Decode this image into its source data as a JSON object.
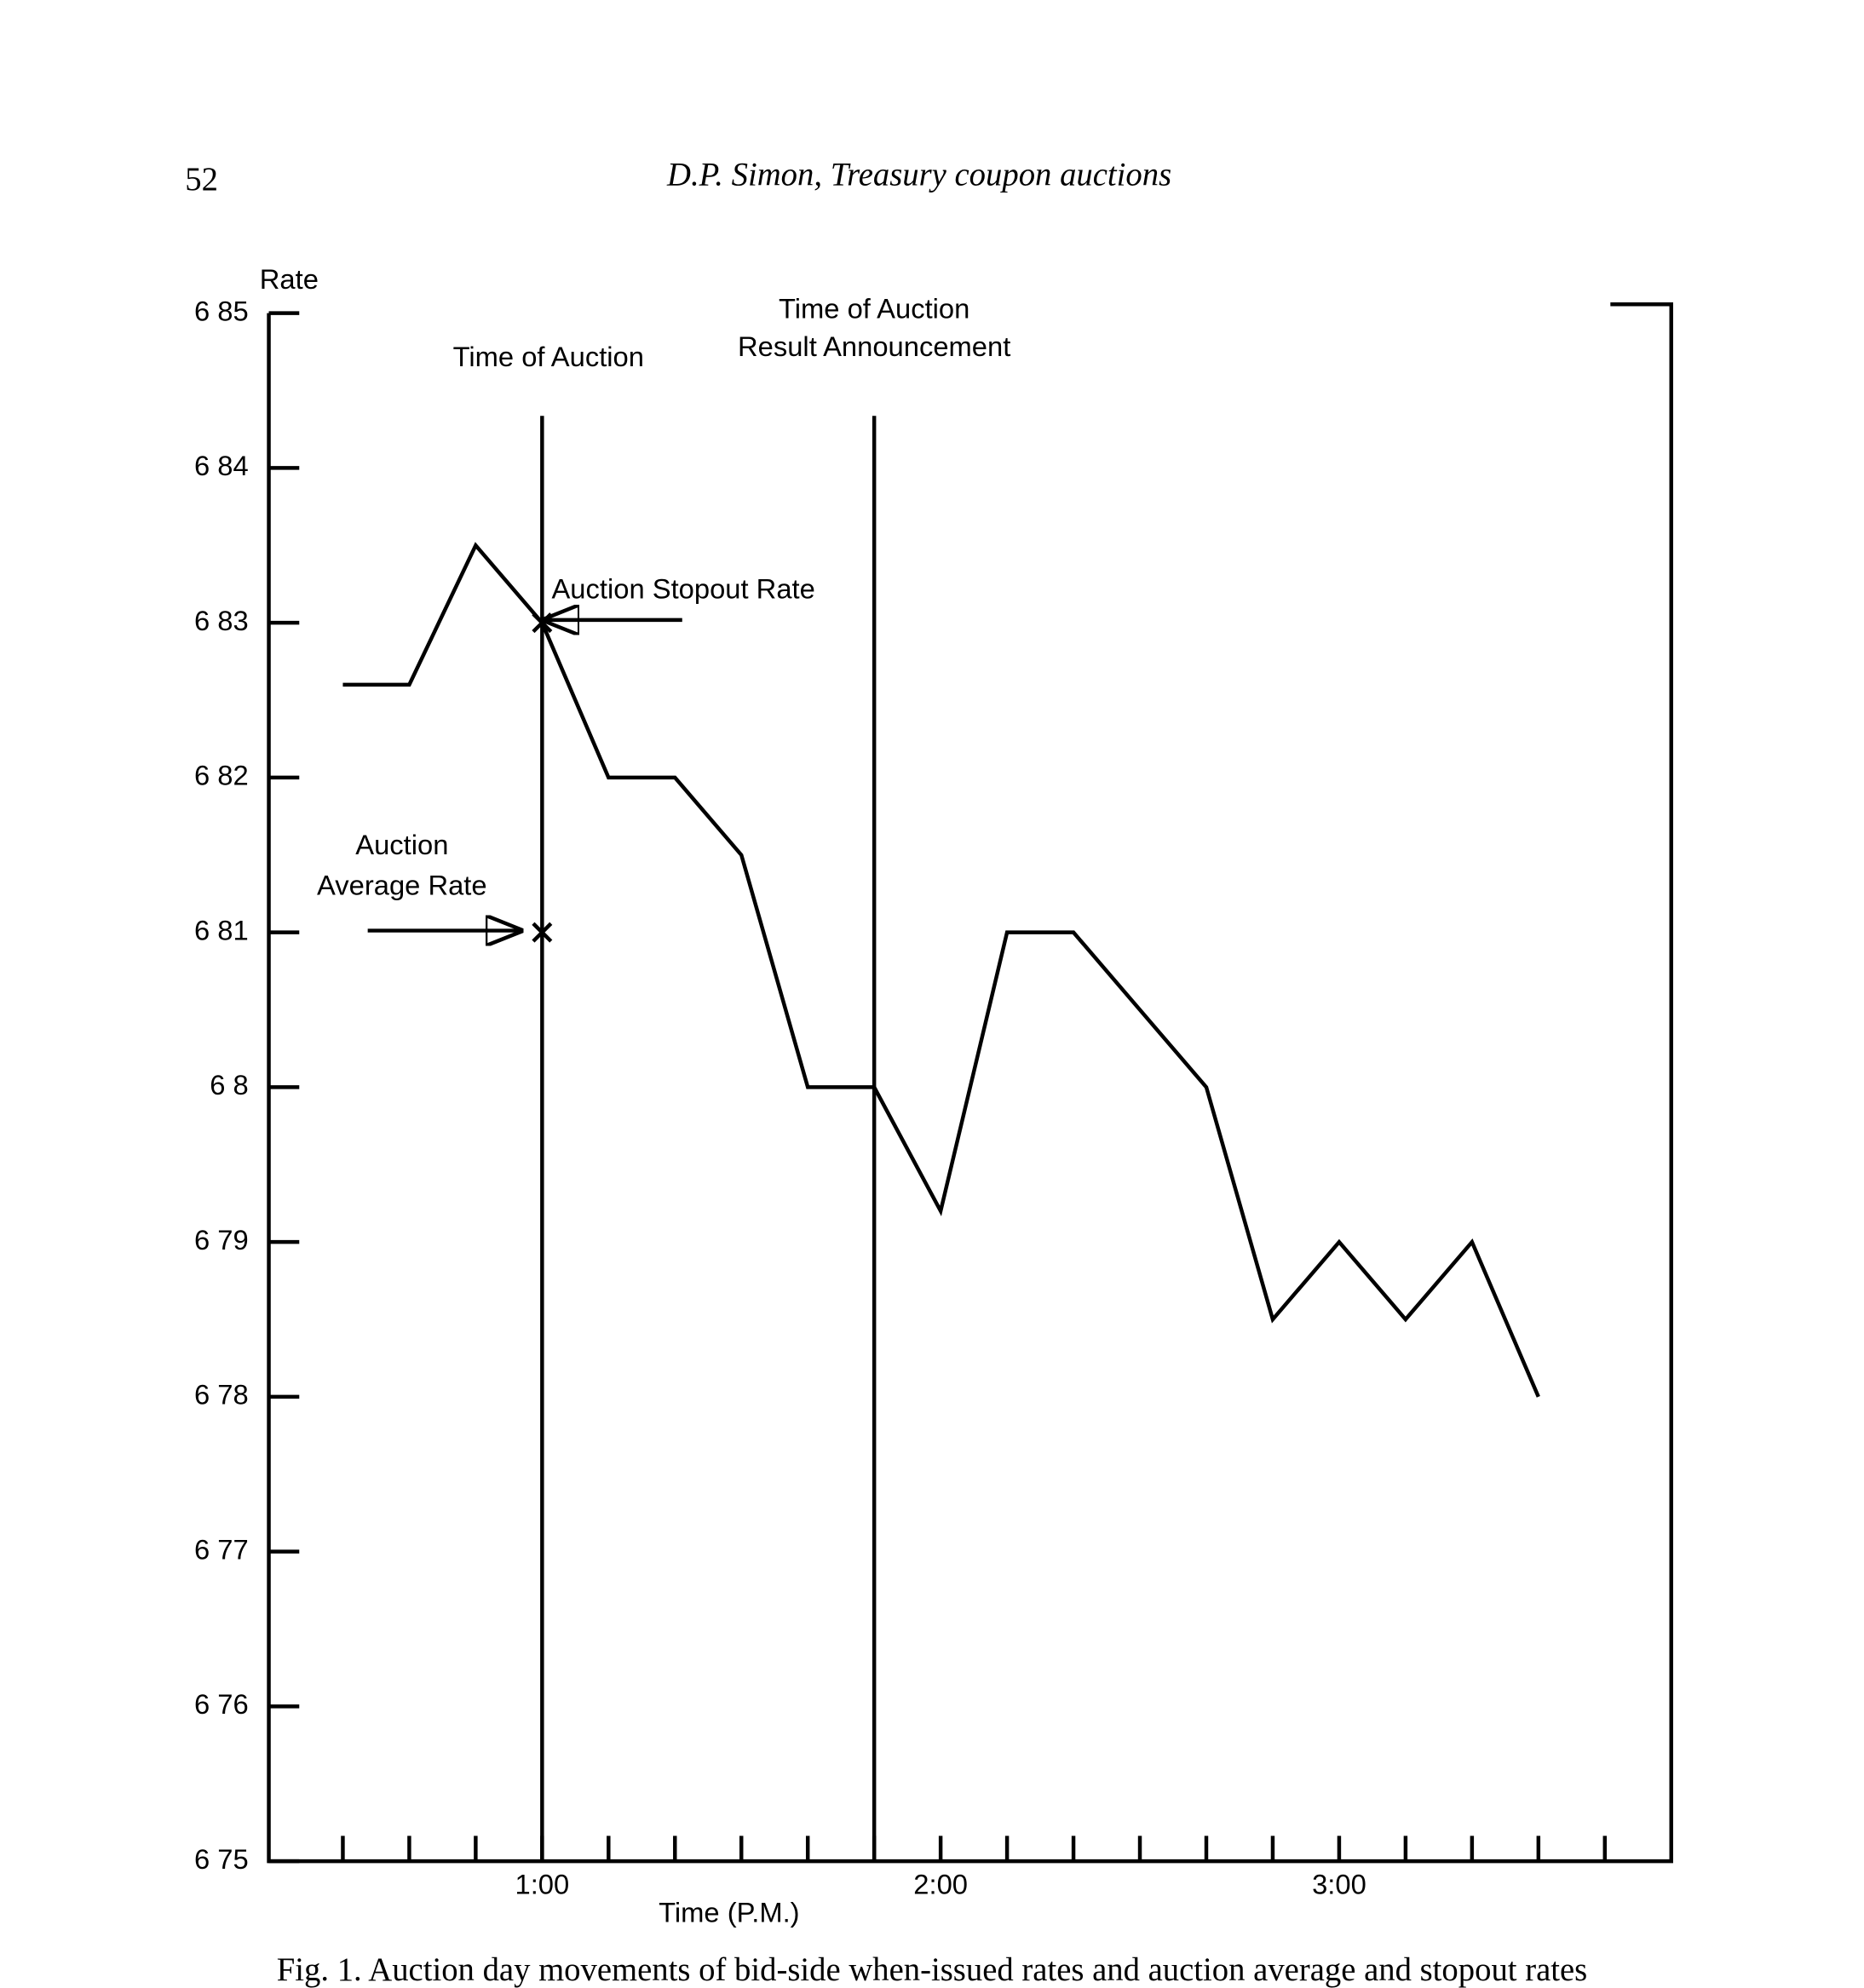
{
  "page_number": "52",
  "running_head": "D.P. Simon, Treasury coupon auctions",
  "caption": "Fig. 1. Auction day movements of bid-side when-issued rates and auction average and stopout rates",
  "chart_data": {
    "type": "line",
    "y_label": "Rate",
    "x_label": "Time (P.M.)",
    "x": [
      30,
      40,
      50,
      60,
      70,
      80,
      90,
      100,
      110,
      120,
      130,
      140,
      150,
      160,
      170,
      180,
      190,
      200,
      210
    ],
    "values": [
      6.826,
      6.826,
      6.835,
      6.83,
      6.82,
      6.82,
      6.815,
      6.8,
      6.8,
      6.792,
      6.81,
      6.81,
      6.805,
      6.8,
      6.785,
      6.79,
      6.785,
      6.79,
      6.78
    ],
    "color": "#000000",
    "xlim": [
      20,
      230
    ],
    "ylim": [
      6.75,
      6.85
    ],
    "xticks": [
      {
        "value": 60,
        "label": "1:00"
      },
      {
        "value": 120,
        "label": "2:00"
      },
      {
        "value": 180,
        "label": "3:00"
      }
    ],
    "xminor_ticks": [
      30,
      40,
      50,
      60,
      70,
      80,
      90,
      100,
      110,
      120,
      130,
      140,
      150,
      160,
      170,
      180,
      190,
      200,
      210,
      220
    ],
    "yticks": [
      {
        "value": 6.85,
        "label": "6 85"
      },
      {
        "value": 6.84,
        "label": "6 84"
      },
      {
        "value": 6.83,
        "label": "6 83"
      },
      {
        "value": 6.82,
        "label": "6 82"
      },
      {
        "value": 6.81,
        "label": "6 81"
      },
      {
        "value": 6.8,
        "label": "6 8"
      },
      {
        "value": 6.79,
        "label": "6 79"
      },
      {
        "value": 6.78,
        "label": "6 78"
      },
      {
        "value": 6.77,
        "label": "6 77"
      },
      {
        "value": 6.76,
        "label": "6 76"
      },
      {
        "value": 6.75,
        "label": "6 75"
      }
    ],
    "vlines": [
      {
        "x": 60,
        "label": [
          "Time of Auction"
        ]
      },
      {
        "x": 110,
        "label": [
          "Time of Auction",
          "Result Announcement"
        ]
      }
    ],
    "markers": [
      {
        "x": 60,
        "y": 6.83,
        "label": [
          "Auction Stopout Rate"
        ]
      },
      {
        "x": 60,
        "y": 6.81,
        "label": [
          "Auction",
          "Average Rate"
        ]
      }
    ]
  }
}
